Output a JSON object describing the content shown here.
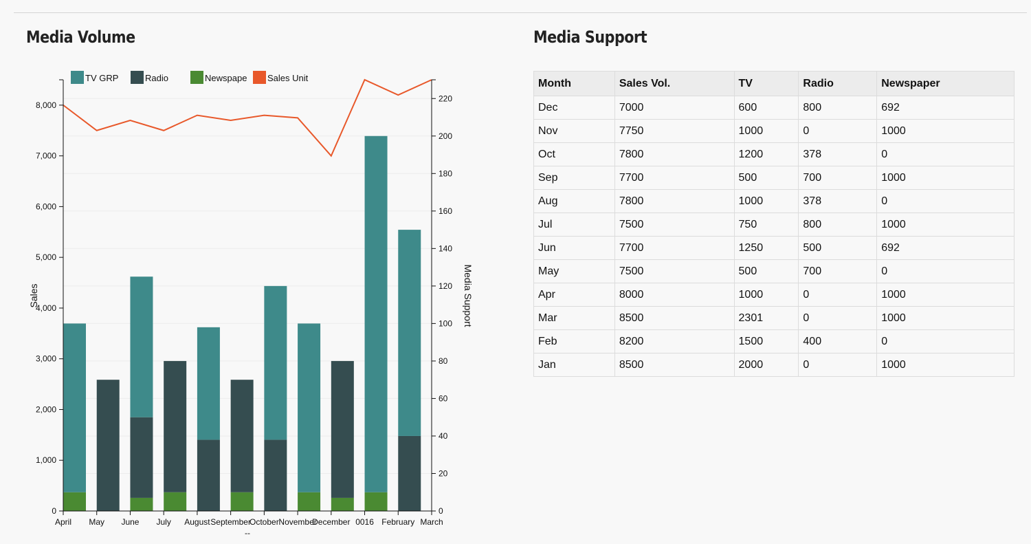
{
  "sections": {
    "volume_title": "Media Volume",
    "support_title": "Media Support"
  },
  "colors": {
    "tv": "#3e8a8a",
    "radio": "#354d50",
    "newspaper": "#4a8a32",
    "sales": "#e8582a"
  },
  "chart_data": {
    "type": "bar",
    "stacked": true,
    "categories": [
      "April",
      "May",
      "June",
      "July",
      "August",
      "September",
      "October",
      "November",
      "December",
      "0016",
      "February",
      "March"
    ],
    "x_extra_label": "--",
    "series": [
      {
        "name": "TV GRP",
        "axis": "right",
        "color": "#3e8a8a",
        "values": [
          90,
          0,
          75,
          0,
          60,
          0,
          82,
          90,
          0,
          190,
          110,
          0
        ]
      },
      {
        "name": "Radio",
        "axis": "right",
        "color": "#354d50",
        "values": [
          0,
          70,
          43,
          70,
          38,
          60,
          38,
          0,
          73,
          0,
          40,
          0
        ]
      },
      {
        "name": "Newspape",
        "axis": "right",
        "color": "#4a8a32",
        "values": [
          10,
          0,
          7,
          10,
          0,
          10,
          0,
          10,
          7,
          10,
          0,
          0
        ]
      },
      {
        "name": "Sales Unit",
        "axis": "left",
        "type": "line",
        "color": "#e8582a",
        "values": [
          8000,
          7500,
          7700,
          7500,
          7800,
          7700,
          7800,
          7750,
          7000,
          8500,
          8200,
          8500
        ]
      }
    ],
    "ylabel": "Sales",
    "y2label": "Media Support",
    "ylim": [
      0,
      8500
    ],
    "y2lim": [
      0,
      230
    ],
    "yticks": [
      "0",
      "1,000",
      "2,000",
      "3,000",
      "4,000",
      "5,000",
      "6,000",
      "7,000",
      "8,000"
    ],
    "y2ticks": [
      "0",
      "20",
      "40",
      "60",
      "80",
      "100",
      "120",
      "140",
      "160",
      "180",
      "200",
      "220"
    ],
    "grid": true,
    "legend": "top"
  },
  "table": {
    "headers": [
      "Month",
      "Sales Vol.",
      "TV",
      "Radio",
      "Newspaper"
    ],
    "rows": [
      [
        "Dec",
        "7000",
        "600",
        "800",
        "692"
      ],
      [
        "Nov",
        "7750",
        "1000",
        "0",
        "1000"
      ],
      [
        "Oct",
        "7800",
        "1200",
        "378",
        "0"
      ],
      [
        "Sep",
        "7700",
        "500",
        "700",
        "1000"
      ],
      [
        "Aug",
        "7800",
        "1000",
        "378",
        "0"
      ],
      [
        "Jul",
        "7500",
        "750",
        "800",
        "1000"
      ],
      [
        "Jun",
        "7700",
        "1250",
        "500",
        "692"
      ],
      [
        "May",
        "7500",
        "500",
        "700",
        "0"
      ],
      [
        "Apr",
        "8000",
        "1000",
        "0",
        "1000"
      ],
      [
        "Mar",
        "8500",
        "2301",
        "0",
        "1000"
      ],
      [
        "Feb",
        "8200",
        "1500",
        "400",
        "0"
      ],
      [
        "Jan",
        "8500",
        "2000",
        "0",
        "1000"
      ]
    ]
  }
}
